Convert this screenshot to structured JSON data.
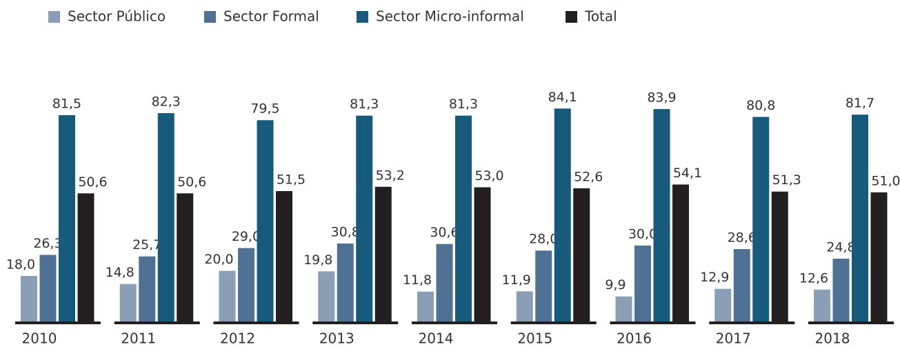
{
  "chart_data": {
    "type": "bar",
    "categories": [
      "2010",
      "2011",
      "2012",
      "2013",
      "2014",
      "2015",
      "2016",
      "2017",
      "2018"
    ],
    "series": [
      {
        "name": "Sector Público",
        "color": "#8a9fb5",
        "values": [
          18.0,
          14.8,
          20.0,
          19.8,
          11.8,
          11.9,
          9.9,
          12.9,
          12.6
        ],
        "value_labels": [
          "18,0",
          "14,8",
          "20,0",
          "19,8",
          "11,8",
          "11,9",
          "9,9",
          "12,9",
          "12,6"
        ]
      },
      {
        "name": "Sector Formal",
        "color": "#4f7294",
        "values": [
          26.3,
          25.7,
          29.0,
          30.8,
          30.6,
          28.0,
          30.0,
          28.6,
          24.8
        ],
        "value_labels": [
          "26,3",
          "25,7",
          "29,0",
          "30,8",
          "30,6",
          "28,0",
          "30,0",
          "28,6",
          "24,8"
        ]
      },
      {
        "name": "Sector Micro-informal",
        "color": "#165a7c",
        "values": [
          81.5,
          82.3,
          79.5,
          81.3,
          81.3,
          84.1,
          83.9,
          80.8,
          81.7
        ],
        "value_labels": [
          "81,5",
          "82,3",
          "79,5",
          "81,3",
          "81,3",
          "84,1",
          "83,9",
          "80,8",
          "81,7"
        ]
      },
      {
        "name": "Total",
        "color": "#231f20",
        "values": [
          50.6,
          50.6,
          51.5,
          53.2,
          53.0,
          52.6,
          54.1,
          51.3,
          51.0
        ],
        "value_labels": [
          "50,6",
          "50,6",
          "51,5",
          "53,2",
          "53,0",
          "52,6",
          "54,1",
          "51,3",
          "51,0"
        ]
      }
    ],
    "legend": "top-left"
  }
}
